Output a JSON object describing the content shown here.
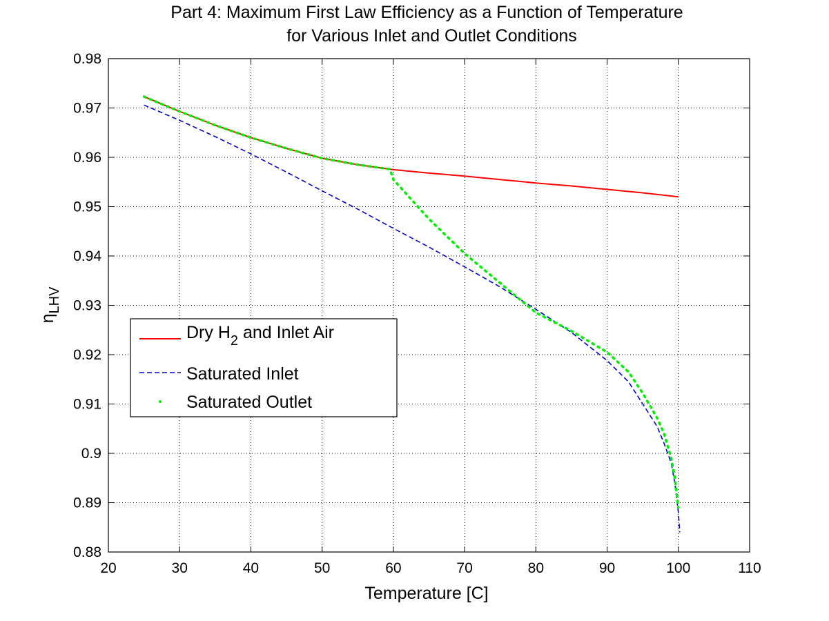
{
  "chart_data": {
    "type": "line",
    "title_lines": [
      "Part 4: Maximum First Law Efficiency as a Function of Temperature",
      "for Various Inlet and Outlet Conditions"
    ],
    "xlabel": "Temperature [C]",
    "ylabel": {
      "main": "η",
      "subscript": "LHV"
    },
    "xlim": [
      20,
      110
    ],
    "ylim": [
      0.88,
      0.98
    ],
    "xticks": [
      20,
      30,
      40,
      50,
      60,
      70,
      80,
      90,
      100,
      110
    ],
    "yticks": [
      0.88,
      0.89,
      0.9,
      0.91,
      0.92,
      0.93,
      0.94,
      0.95,
      0.96,
      0.97,
      0.98
    ],
    "xtick_labels": [
      "20",
      "30",
      "40",
      "50",
      "60",
      "70",
      "80",
      "90",
      "100",
      "110"
    ],
    "ytick_labels": [
      "0.88",
      "0.89",
      "0.9",
      "0.91",
      "0.92",
      "0.93",
      "0.94",
      "0.95",
      "0.96",
      "0.97",
      "0.98"
    ],
    "grid": true,
    "legend_position": "left-middle",
    "series": [
      {
        "name": "Dry H2 and Inlet Air",
        "legend_label": {
          "pre": "Dry H",
          "subscript": "2",
          "post": " and Inlet Air"
        },
        "color": "#ff0000",
        "style": "solid",
        "x": [
          25,
          30,
          35,
          40,
          45,
          50,
          55,
          60,
          65,
          70,
          75,
          80,
          85,
          90,
          95,
          100
        ],
        "y": [
          0.9723,
          0.9693,
          0.9665,
          0.964,
          0.9618,
          0.9598,
          0.9585,
          0.9575,
          0.9568,
          0.9562,
          0.9555,
          0.9548,
          0.9542,
          0.9535,
          0.9528,
          0.952
        ]
      },
      {
        "name": "Saturated Inlet",
        "legend_label": {
          "pre": "Saturated Inlet",
          "subscript": "",
          "post": ""
        },
        "color": "#0000cc",
        "style": "dashed",
        "x": [
          25,
          30,
          35,
          40,
          45,
          50,
          55,
          60,
          65,
          70,
          75,
          80,
          85,
          90,
          93,
          95,
          97,
          98,
          99,
          99.5,
          100,
          100.2
        ],
        "y": [
          0.9706,
          0.9675,
          0.9642,
          0.9607,
          0.957,
          0.9532,
          0.9495,
          0.9456,
          0.9418,
          0.9378,
          0.9337,
          0.9292,
          0.9245,
          0.9188,
          0.9145,
          0.91,
          0.9055,
          0.902,
          0.898,
          0.894,
          0.888,
          0.884
        ]
      },
      {
        "name": "Saturated Outlet",
        "legend_label": {
          "pre": "Saturated Outlet",
          "subscript": "",
          "post": ""
        },
        "color": "#00ee00",
        "style": "dotted",
        "x": [
          25,
          30,
          35,
          40,
          45,
          50,
          55,
          59.5,
          60,
          65,
          70,
          75,
          80,
          85,
          90,
          93,
          95,
          97,
          98,
          99,
          99.5,
          100
        ],
        "y": [
          0.9723,
          0.9693,
          0.9665,
          0.964,
          0.9618,
          0.9598,
          0.9585,
          0.9576,
          0.9555,
          0.9475,
          0.9405,
          0.9345,
          0.9285,
          0.9248,
          0.9205,
          0.9165,
          0.9122,
          0.9072,
          0.904,
          0.899,
          0.895,
          0.889
        ]
      }
    ]
  }
}
